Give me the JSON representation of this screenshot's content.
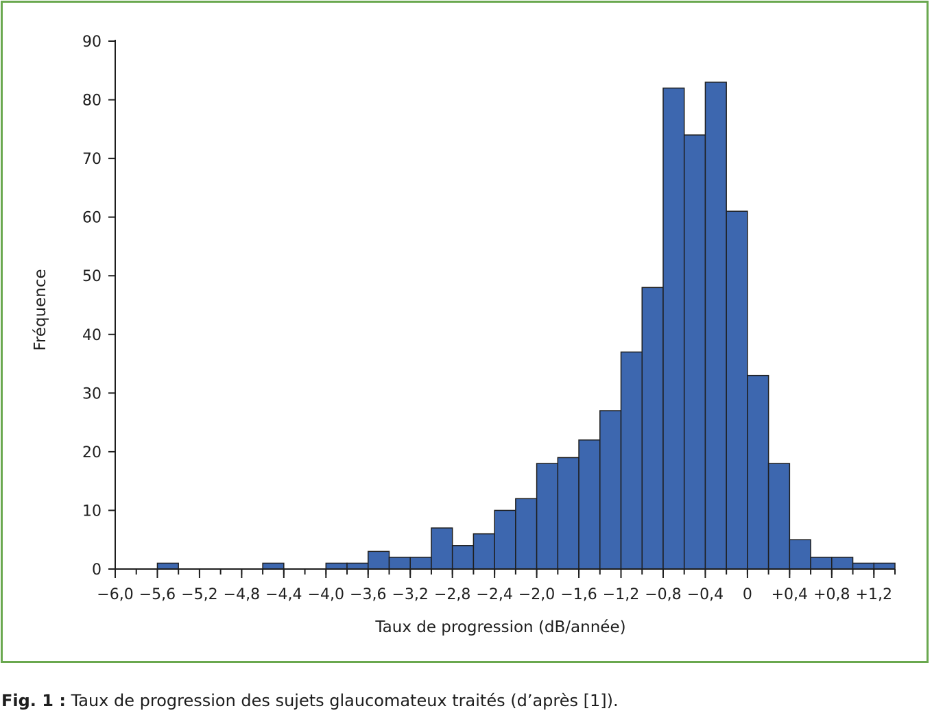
{
  "chart_data": {
    "type": "bar",
    "title": "",
    "xlabel": "Taux de progression (dB/année)",
    "ylabel": "Fréquence",
    "bin_width": 0.2,
    "xlim": [
      -6.0,
      1.4
    ],
    "ylim": [
      0,
      90
    ],
    "y_ticks": [
      0,
      10,
      20,
      30,
      40,
      50,
      60,
      70,
      80,
      90
    ],
    "x_ticks": [
      {
        "value": -6.0,
        "label": "−6,0"
      },
      {
        "value": -5.6,
        "label": "−5,6"
      },
      {
        "value": -5.2,
        "label": "−5,2"
      },
      {
        "value": -4.8,
        "label": "−4,8"
      },
      {
        "value": -4.4,
        "label": "−4,4"
      },
      {
        "value": -4.0,
        "label": "−4,0"
      },
      {
        "value": -3.6,
        "label": "−3,6"
      },
      {
        "value": -3.2,
        "label": "−3,2"
      },
      {
        "value": -2.8,
        "label": "−2,8"
      },
      {
        "value": -2.4,
        "label": "−2,4"
      },
      {
        "value": -2.0,
        "label": "−2,0"
      },
      {
        "value": -1.6,
        "label": "−1,6"
      },
      {
        "value": -1.2,
        "label": "−1,2"
      },
      {
        "value": -0.8,
        "label": "−0,8"
      },
      {
        "value": -0.4,
        "label": "−0,4"
      },
      {
        "value": 0.0,
        "label": "0"
      },
      {
        "value": 0.4,
        "label": "+0,4"
      },
      {
        "value": 0.8,
        "label": "+0,8"
      },
      {
        "value": 1.2,
        "label": "+1,2"
      }
    ],
    "bins": [
      {
        "x0": -5.6,
        "value": 1
      },
      {
        "x0": -4.6,
        "value": 1
      },
      {
        "x0": -4.0,
        "value": 1
      },
      {
        "x0": -3.8,
        "value": 1
      },
      {
        "x0": -3.6,
        "value": 3
      },
      {
        "x0": -3.4,
        "value": 2
      },
      {
        "x0": -3.2,
        "value": 2
      },
      {
        "x0": -3.0,
        "value": 7
      },
      {
        "x0": -2.8,
        "value": 4
      },
      {
        "x0": -2.6,
        "value": 6
      },
      {
        "x0": -2.4,
        "value": 10
      },
      {
        "x0": -2.2,
        "value": 12
      },
      {
        "x0": -2.0,
        "value": 18
      },
      {
        "x0": -1.8,
        "value": 19
      },
      {
        "x0": -1.6,
        "value": 22
      },
      {
        "x0": -1.4,
        "value": 27
      },
      {
        "x0": -1.2,
        "value": 37
      },
      {
        "x0": -1.0,
        "value": 48
      },
      {
        "x0": -0.8,
        "value": 82
      },
      {
        "x0": -0.6,
        "value": 74
      },
      {
        "x0": -0.4,
        "value": 83
      },
      {
        "x0": -0.2,
        "value": 61
      },
      {
        "x0": 0.0,
        "value": 33
      },
      {
        "x0": 0.2,
        "value": 18
      },
      {
        "x0": 0.4,
        "value": 5
      },
      {
        "x0": 0.6,
        "value": 2
      },
      {
        "x0": 0.8,
        "value": 2
      },
      {
        "x0": 1.0,
        "value": 1
      },
      {
        "x0": 1.2,
        "value": 1
      }
    ],
    "grid": false,
    "colors": {
      "bar_fill": "#3d67af",
      "bar_stroke": "#1e1e1e",
      "axis": "#1e1e1e",
      "frame": "#6aa84f"
    }
  },
  "caption": {
    "label": "Fig. 1 :",
    "text": " Taux de progression des sujets glaucomateux traités (d’après [1])."
  }
}
